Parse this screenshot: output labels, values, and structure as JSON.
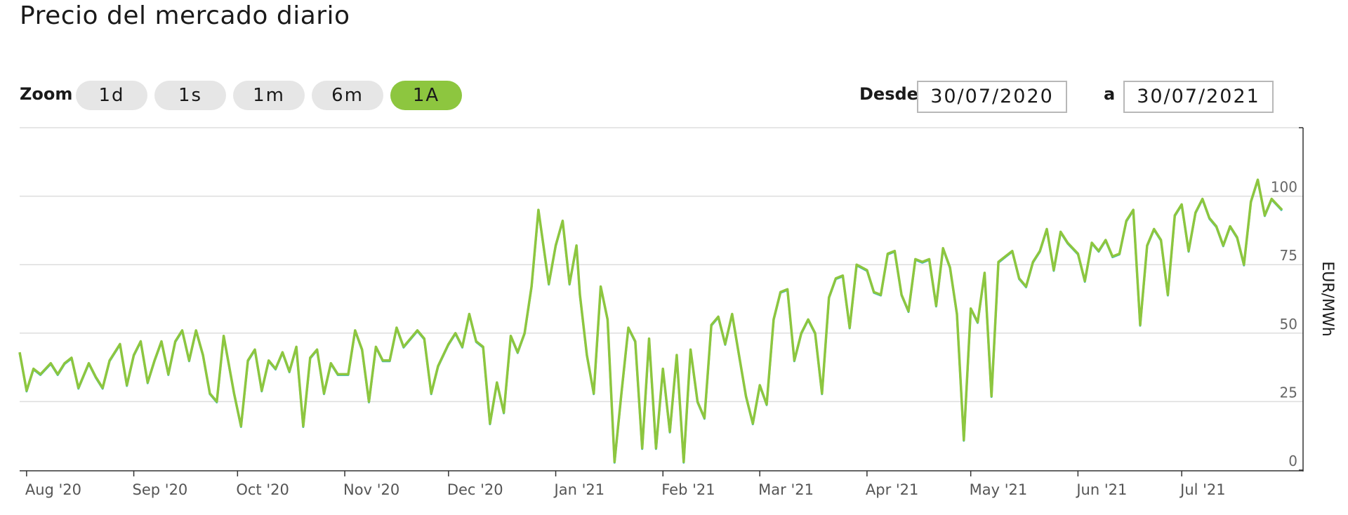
{
  "page": {
    "title": "Precio del mercado diario"
  },
  "toolbar": {
    "zoom_label": "Zoom",
    "zoom_buttons": [
      {
        "label": "1d",
        "active": false
      },
      {
        "label": "1s",
        "active": false
      },
      {
        "label": "1m",
        "active": false
      },
      {
        "label": "6m",
        "active": false
      },
      {
        "label": "1A",
        "active": true
      }
    ],
    "from_label": "Desde",
    "from_value": "30/07/2020",
    "to_label": "a",
    "to_value": "30/07/2021"
  },
  "colors": {
    "accent": "#8dc63f",
    "line_secondary": "#29b6c8",
    "grid": "#dddddd"
  },
  "chart_data": {
    "type": "line",
    "title": "",
    "xlabel": "",
    "ylabel": "EUR/MWh",
    "ylim": [
      0,
      125
    ],
    "yticks": [
      0,
      25,
      50,
      75,
      100
    ],
    "xlim": [
      "2020-07-30",
      "2021-07-30"
    ],
    "xticks": [
      {
        "date": "2020-08-01",
        "label": "Aug '20"
      },
      {
        "date": "2020-09-01",
        "label": "Sep '20"
      },
      {
        "date": "2020-10-01",
        "label": "Oct '20"
      },
      {
        "date": "2020-11-01",
        "label": "Nov '20"
      },
      {
        "date": "2020-12-01",
        "label": "Dec '20"
      },
      {
        "date": "2021-01-01",
        "label": "Jan '21"
      },
      {
        "date": "2021-02-01",
        "label": "Feb '21"
      },
      {
        "date": "2021-03-01",
        "label": "Mar '21"
      },
      {
        "date": "2021-04-01",
        "label": "Apr '21"
      },
      {
        "date": "2021-05-01",
        "label": "May '21"
      },
      {
        "date": "2021-06-01",
        "label": "Jun '21"
      },
      {
        "date": "2021-07-01",
        "label": "Jul '21"
      }
    ],
    "grid": true,
    "series": [
      {
        "color": "#8dc63f",
        "x": [
          "2020-07-30",
          "2020-08-01",
          "2020-08-03",
          "2020-08-05",
          "2020-08-08",
          "2020-08-10",
          "2020-08-12",
          "2020-08-14",
          "2020-08-16",
          "2020-08-19",
          "2020-08-21",
          "2020-08-23",
          "2020-08-25",
          "2020-08-28",
          "2020-08-30",
          "2020-09-01",
          "2020-09-03",
          "2020-09-05",
          "2020-09-07",
          "2020-09-09",
          "2020-09-11",
          "2020-09-13",
          "2020-09-15",
          "2020-09-17",
          "2020-09-19",
          "2020-09-21",
          "2020-09-23",
          "2020-09-25",
          "2020-09-27",
          "2020-09-30",
          "2020-10-02",
          "2020-10-04",
          "2020-10-06",
          "2020-10-08",
          "2020-10-10",
          "2020-10-12",
          "2020-10-14",
          "2020-10-16",
          "2020-10-18",
          "2020-10-20",
          "2020-10-22",
          "2020-10-24",
          "2020-10-26",
          "2020-10-28",
          "2020-10-30",
          "2020-11-02",
          "2020-11-04",
          "2020-11-06",
          "2020-11-08",
          "2020-11-10",
          "2020-11-12",
          "2020-11-14",
          "2020-11-16",
          "2020-11-18",
          "2020-11-20",
          "2020-11-22",
          "2020-11-24",
          "2020-11-26",
          "2020-11-28",
          "2020-12-01",
          "2020-12-03",
          "2020-12-05",
          "2020-12-07",
          "2020-12-09",
          "2020-12-11",
          "2020-12-13",
          "2020-12-15",
          "2020-12-17",
          "2020-12-19",
          "2020-12-21",
          "2020-12-23",
          "2020-12-25",
          "2020-12-27",
          "2020-12-30",
          "2021-01-01",
          "2021-01-03",
          "2021-01-05",
          "2021-01-07",
          "2021-01-08",
          "2021-01-10",
          "2021-01-12",
          "2021-01-14",
          "2021-01-16",
          "2021-01-18",
          "2021-01-20",
          "2021-01-22",
          "2021-01-24",
          "2021-01-26",
          "2021-01-28",
          "2021-01-30",
          "2021-02-01",
          "2021-02-03",
          "2021-02-05",
          "2021-02-07",
          "2021-02-09",
          "2021-02-11",
          "2021-02-13",
          "2021-02-15",
          "2021-02-17",
          "2021-02-19",
          "2021-02-21",
          "2021-02-23",
          "2021-02-25",
          "2021-02-27",
          "2021-03-01",
          "2021-03-03",
          "2021-03-05",
          "2021-03-07",
          "2021-03-09",
          "2021-03-11",
          "2021-03-13",
          "2021-03-15",
          "2021-03-17",
          "2021-03-19",
          "2021-03-21",
          "2021-03-23",
          "2021-03-25",
          "2021-03-27",
          "2021-03-29",
          "2021-04-01",
          "2021-04-03",
          "2021-04-05",
          "2021-04-07",
          "2021-04-09",
          "2021-04-11",
          "2021-04-13",
          "2021-04-15",
          "2021-04-17",
          "2021-04-19",
          "2021-04-21",
          "2021-04-23",
          "2021-04-25",
          "2021-04-27",
          "2021-04-29",
          "2021-05-01",
          "2021-05-03",
          "2021-05-05",
          "2021-05-07",
          "2021-05-09",
          "2021-05-11",
          "2021-05-13",
          "2021-05-15",
          "2021-05-17",
          "2021-05-19",
          "2021-05-21",
          "2021-05-23",
          "2021-05-25",
          "2021-05-27",
          "2021-05-29",
          "2021-06-01",
          "2021-06-03",
          "2021-06-05",
          "2021-06-07",
          "2021-06-09",
          "2021-06-11",
          "2021-06-13",
          "2021-06-15",
          "2021-06-17",
          "2021-06-19",
          "2021-06-21",
          "2021-06-23",
          "2021-06-25",
          "2021-06-27",
          "2021-06-29",
          "2021-07-01",
          "2021-07-03",
          "2021-07-05",
          "2021-07-07",
          "2021-07-09",
          "2021-07-11",
          "2021-07-13",
          "2021-07-15",
          "2021-07-17",
          "2021-07-19",
          "2021-07-21",
          "2021-07-23",
          "2021-07-25",
          "2021-07-27",
          "2021-07-30"
        ],
        "y": [
          43,
          29,
          37,
          35,
          39,
          35,
          39,
          41,
          30,
          39,
          34,
          30,
          40,
          46,
          31,
          42,
          47,
          32,
          40,
          47,
          35,
          47,
          51,
          40,
          51,
          42,
          28,
          25,
          49,
          28,
          16,
          40,
          44,
          29,
          40,
          37,
          43,
          36,
          45,
          16,
          41,
          44,
          28,
          39,
          35,
          35,
          51,
          44,
          25,
          45,
          40,
          40,
          52,
          45,
          48,
          51,
          48,
          28,
          38,
          46,
          50,
          45,
          57,
          47,
          45,
          17,
          32,
          21,
          49,
          43,
          50,
          67,
          95,
          68,
          82,
          91,
          68,
          82,
          64,
          42,
          28,
          67,
          55,
          3,
          28,
          52,
          47,
          8,
          48,
          8,
          37,
          14,
          42,
          3,
          44,
          25,
          19,
          53,
          56,
          46,
          57,
          42,
          27,
          17,
          31,
          24,
          55,
          65,
          66,
          40,
          50,
          55,
          50,
          28,
          63,
          70,
          71,
          52,
          75,
          73,
          65,
          64,
          79,
          80,
          64,
          58,
          77,
          76,
          77,
          60,
          81,
          74,
          57,
          11,
          59,
          54,
          72,
          27,
          76,
          78,
          80,
          70,
          67,
          76,
          80,
          88,
          73,
          87,
          83,
          79,
          69,
          83,
          80,
          84,
          78,
          79,
          91,
          95,
          53,
          82,
          88,
          84,
          64,
          93,
          97,
          80,
          94,
          99,
          92,
          89,
          82,
          89,
          85,
          75,
          98,
          106,
          93,
          99,
          95
        ]
      }
    ]
  }
}
